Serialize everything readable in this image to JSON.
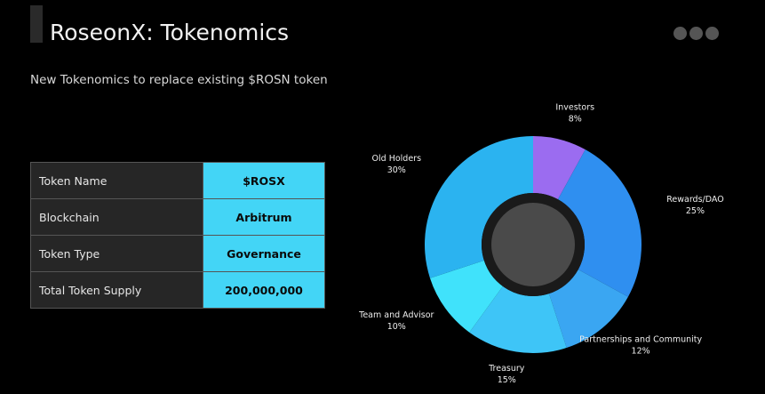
{
  "header": {
    "title": "RoseonX: Tokenomics",
    "subtitle": "New Tokenomics to replace existing $ROSN token"
  },
  "table": {
    "rows": [
      [
        "Token Name",
        "$ROSX"
      ],
      [
        "Blockchain",
        "Arbitrum"
      ],
      [
        "Token Type",
        "Governance"
      ],
      [
        "Total Token Supply",
        "200,000,000"
      ]
    ]
  },
  "chart_data": {
    "type": "pie",
    "categories": [
      "Investors",
      "Rewards/DAO",
      "Partnerships and Community",
      "Treasury",
      "Team and Advisor",
      "Old Holders"
    ],
    "values": [
      8,
      25,
      12,
      15,
      10,
      30
    ],
    "value_labels": [
      "8%",
      "25%",
      "12%",
      "15%",
      "10%",
      "30%"
    ],
    "colors": [
      "#9b6cf0",
      "#2f8ff0",
      "#3aa6f2",
      "#3ec5f7",
      "#40e2fb",
      "#2bb3f0"
    ]
  }
}
